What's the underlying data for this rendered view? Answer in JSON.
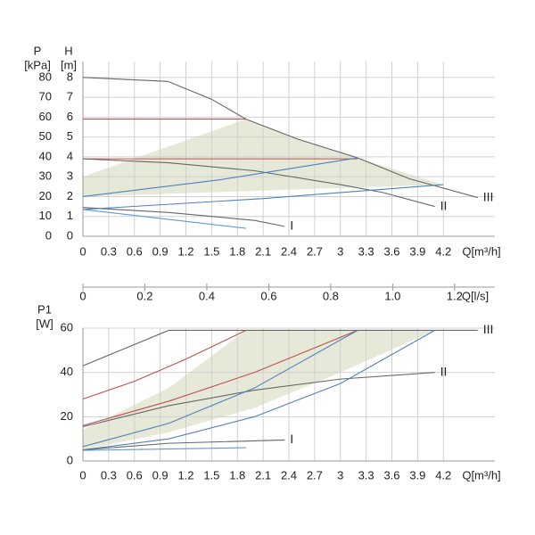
{
  "chart_data": [
    {
      "type": "line",
      "ylabel": "H",
      "yunit": "[m]",
      "y2label": "P",
      "y2unit": "[kPa]",
      "xlabel": "Q[m³/h]",
      "xlim": [
        0,
        4.8
      ],
      "xticks": [
        0,
        0.3,
        0.6,
        0.9,
        1.2,
        1.5,
        1.8,
        2.1,
        2.4,
        2.7,
        3.0,
        3.3,
        3.6,
        3.9,
        4.2
      ],
      "ylim": [
        0,
        8.8
      ],
      "yticks": [
        0,
        1,
        2,
        3,
        4,
        5,
        6,
        7,
        8
      ],
      "y2lim": [
        0,
        88
      ],
      "y2ticks": [
        0,
        10,
        20,
        30,
        40,
        50,
        60,
        70,
        80
      ],
      "grid": true,
      "area": {
        "color": "#e6e8d8",
        "x": [
          0,
          1.9,
          2.5,
          3.2,
          3.9,
          4.2,
          0
        ],
        "values": [
          3.0,
          5.9,
          4.9,
          3.95,
          3.0,
          2.6,
          2.0
        ]
      },
      "series": [
        {
          "name": "III",
          "color": "#666666",
          "x": [
            0,
            0.99,
            1.5,
            1.9,
            2.5,
            3.2,
            3.8,
            4.6
          ],
          "values": [
            8.0,
            7.8,
            6.9,
            5.9,
            4.9,
            3.95,
            2.9,
            1.95
          ]
        },
        {
          "color": "#c0504d",
          "x": [
            0,
            1.9
          ],
          "values": [
            5.9,
            5.9
          ]
        },
        {
          "color": "#c0504d",
          "x": [
            0,
            3.2
          ],
          "values": [
            3.9,
            3.9
          ]
        },
        {
          "name": "II",
          "color": "#666666",
          "x": [
            0,
            1.0,
            2.0,
            3.0,
            3.5,
            4.1
          ],
          "values": [
            3.9,
            3.7,
            3.3,
            2.6,
            2.2,
            1.5
          ]
        },
        {
          "name": "I",
          "color": "#666666",
          "x": [
            0,
            1.0,
            2.0,
            2.35
          ],
          "values": [
            1.45,
            1.2,
            0.8,
            0.5
          ]
        },
        {
          "color": "#4f81bd",
          "x": [
            0,
            1.6,
            3.2
          ],
          "values": [
            2.0,
            2.85,
            3.95
          ]
        },
        {
          "color": "#4f81bd",
          "x": [
            0,
            2.1,
            4.2
          ],
          "values": [
            1.35,
            1.9,
            2.6
          ]
        },
        {
          "color": "#5b9bd5",
          "x": [
            0,
            1.9
          ],
          "values": [
            1.35,
            0.4
          ]
        }
      ]
    },
    {
      "type": "line",
      "ylabel": "P1",
      "yunit": "[W]",
      "xlabel": "Q[m³/h]",
      "x2label": "Q[l/s]",
      "xlim": [
        0,
        4.8
      ],
      "xticks": [
        0,
        0.3,
        0.6,
        0.9,
        1.2,
        1.5,
        1.8,
        2.1,
        2.4,
        2.7,
        3.0,
        3.3,
        3.6,
        3.9,
        4.2
      ],
      "x2lim": [
        0,
        1.33
      ],
      "x2ticks": [
        0,
        0.2,
        0.4,
        0.6,
        0.8,
        {
          "value": 1.0,
          "label": "1.0"
        },
        1.2
      ],
      "ylim": [
        0,
        60
      ],
      "yticks": [
        0,
        20,
        40,
        60
      ],
      "grid": true,
      "area": {
        "color": "#e6e8d8",
        "x": [
          0,
          0,
          1.0,
          1.9,
          4.1,
          3.0,
          2.0,
          1.0,
          0
        ],
        "values": [
          5,
          14,
          33,
          59,
          59,
          40,
          24,
          13,
          5
        ]
      },
      "series": [
        {
          "name": "III",
          "color": "#666666",
          "x": [
            0,
            1.0,
            4.6
          ],
          "values": [
            43,
            59,
            59
          ]
        },
        {
          "color": "#c0504d",
          "x": [
            0,
            0.6,
            1.2,
            1.9
          ],
          "values": [
            28,
            36,
            46,
            59
          ]
        },
        {
          "color": "#c0504d",
          "x": [
            0,
            1.0,
            2.0,
            3.2
          ],
          "values": [
            16,
            27,
            40,
            59
          ]
        },
        {
          "name": "II",
          "color": "#666666",
          "x": [
            0,
            1.0,
            2.0,
            3.0,
            4.1
          ],
          "values": [
            15.5,
            25,
            32,
            37,
            40
          ]
        },
        {
          "color": "#4f81bd",
          "x": [
            0,
            1.0,
            2.0,
            3.2
          ],
          "values": [
            6.5,
            17,
            33,
            59
          ]
        },
        {
          "color": "#4f81bd",
          "x": [
            0,
            1.0,
            2.0,
            3.0,
            4.1
          ],
          "values": [
            5,
            10,
            20,
            35,
            59
          ]
        },
        {
          "name": "I",
          "color": "#666666",
          "x": [
            0,
            1.0,
            2.35
          ],
          "values": [
            5,
            8,
            9.5
          ]
        },
        {
          "color": "#5b9bd5",
          "x": [
            0,
            1.9
          ],
          "values": [
            4.8,
            6
          ]
        }
      ]
    }
  ]
}
